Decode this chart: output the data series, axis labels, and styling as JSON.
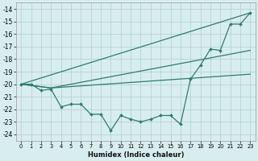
{
  "xlabel": "Humidex (Indice chaleur)",
  "x_all": [
    0,
    1,
    2,
    3,
    4,
    5,
    6,
    7,
    8,
    9,
    10,
    11,
    12,
    13,
    14,
    15,
    16,
    17,
    18,
    19,
    20,
    21,
    22,
    23
  ],
  "y_jagged": [
    -20.0,
    -20.0,
    -20.5,
    -20.4,
    -21.8,
    -21.6,
    -21.6,
    -22.4,
    -22.4,
    -23.7,
    -22.5,
    -22.8,
    -23.0,
    -22.8,
    -22.5,
    -22.5,
    -23.2,
    -19.6,
    -18.5,
    -17.2,
    -17.3,
    -15.2,
    -15.2,
    -14.3
  ],
  "line1_x": [
    0,
    23
  ],
  "line1_y": [
    -20.0,
    -14.3
  ],
  "line2_x": [
    0,
    3,
    23
  ],
  "line2_y": [
    -20.0,
    -20.3,
    -17.3
  ],
  "line3_x": [
    0,
    3,
    23
  ],
  "line3_y": [
    -20.0,
    -20.3,
    -19.2
  ],
  "ylim": [
    -24.5,
    -13.5
  ],
  "xlim": [
    -0.5,
    23.5
  ],
  "yticks": [
    -24,
    -23,
    -22,
    -21,
    -20,
    -19,
    -18,
    -17,
    -16,
    -15,
    -14
  ],
  "xticks": [
    0,
    1,
    2,
    3,
    4,
    5,
    6,
    7,
    8,
    9,
    10,
    11,
    12,
    13,
    14,
    15,
    16,
    17,
    18,
    19,
    20,
    21,
    22,
    23
  ],
  "line_color": "#2d7d6d",
  "bg_color": "#d8eeee",
  "grid_color": "#b0cccc"
}
